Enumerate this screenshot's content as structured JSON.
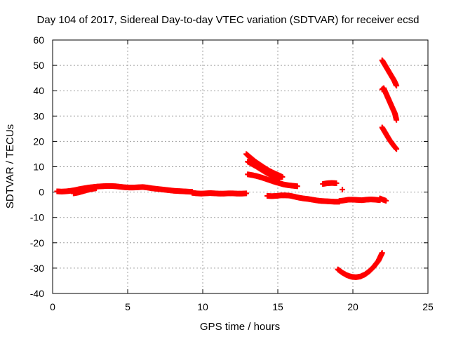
{
  "chart_data": {
    "type": "scatter",
    "title": "Day 104 of 2017, Sidereal Day-to-day VTEC variation (SDTVAR) for receiver ecsd",
    "xlabel": "GPS time / hours",
    "ylabel": "SDTVAR / TECUs",
    "xlim": [
      0,
      25
    ],
    "ylim": [
      -40,
      60
    ],
    "x_ticks": [
      "0",
      "5",
      "10",
      "15",
      "20",
      "25"
    ],
    "y_ticks": [
      "60",
      "50",
      "40",
      "30",
      "20",
      "10",
      "0",
      "-10",
      "-20",
      "-30",
      "-40"
    ],
    "x_tick_values": [
      0,
      5,
      10,
      15,
      20,
      25
    ],
    "y_tick_values": [
      60,
      50,
      40,
      30,
      20,
      10,
      0,
      -10,
      -20,
      -30,
      -40
    ],
    "grid": true,
    "marker": "plus",
    "series_color": "#ff0000",
    "series": [
      {
        "x": [
          0.3,
          0.6,
          0.9,
          1.2,
          1.5,
          1.8,
          2.1,
          2.4,
          2.7,
          3.0,
          3.3,
          3.6,
          3.9,
          4.2,
          4.5,
          4.8,
          5.1,
          5.4,
          5.7,
          6.0,
          6.3,
          6.6,
          6.9,
          7.2,
          7.5,
          7.8,
          8.1,
          8.4,
          8.7,
          9.0,
          9.3
        ],
        "y": [
          0.3,
          0.2,
          0.3,
          0.5,
          0.8,
          1.2,
          1.5,
          1.8,
          2.0,
          2.2,
          2.3,
          2.4,
          2.4,
          2.3,
          2.1,
          1.9,
          1.8,
          1.8,
          1.9,
          2.0,
          1.8,
          1.5,
          1.3,
          1.1,
          0.9,
          0.7,
          0.5,
          0.4,
          0.3,
          0.2,
          0.1
        ]
      },
      {
        "x": [
          1.4,
          1.7,
          2.0,
          2.3,
          2.6,
          2.9
        ],
        "y": [
          -0.5,
          -0.2,
          0.3,
          0.8,
          1.2,
          1.5
        ]
      },
      {
        "x": [
          9.3,
          9.6,
          9.9,
          10.2,
          10.5,
          10.8,
          11.1,
          11.4,
          11.7,
          12.0,
          12.3,
          12.6,
          12.9
        ],
        "y": [
          -0.3,
          -0.5,
          -0.6,
          -0.5,
          -0.4,
          -0.5,
          -0.6,
          -0.6,
          -0.5,
          -0.5,
          -0.6,
          -0.6,
          -0.5
        ]
      },
      {
        "x": [
          12.9,
          13.2,
          13.5,
          13.8,
          14.1,
          14.4,
          14.7,
          15.0,
          15.3
        ],
        "y": [
          15.0,
          13.5,
          12.0,
          10.8,
          9.6,
          8.5,
          7.6,
          6.8,
          6.0
        ]
      },
      {
        "x": [
          13.0,
          13.3,
          13.6,
          13.9,
          14.2,
          14.5,
          14.8,
          15.1
        ],
        "y": [
          12.0,
          11.0,
          10.0,
          8.9,
          7.8,
          6.8,
          5.9,
          5.1
        ]
      },
      {
        "x": [
          13.0,
          13.3,
          13.6,
          13.9,
          14.2,
          14.5,
          14.8,
          15.1,
          15.4,
          15.7,
          16.0,
          16.3
        ],
        "y": [
          7.0,
          6.7,
          6.3,
          5.8,
          5.2,
          4.6,
          4.0,
          3.5,
          3.0,
          2.7,
          2.5,
          2.3
        ]
      },
      {
        "x": [
          14.3,
          14.6,
          14.9,
          15.2,
          15.5,
          15.8,
          16.1,
          16.4,
          16.7,
          17.0,
          17.3,
          17.6,
          17.9,
          18.2,
          18.5,
          18.8,
          19.1
        ],
        "y": [
          -1.5,
          -1.6,
          -1.5,
          -1.3,
          -1.3,
          -1.4,
          -1.8,
          -2.2,
          -2.5,
          -2.7,
          -3.0,
          -3.3,
          -3.5,
          -3.6,
          -3.7,
          -3.8,
          -3.8
        ]
      },
      {
        "x": [
          18.0,
          18.3,
          18.6,
          18.9
        ],
        "y": [
          3.2,
          3.5,
          3.6,
          3.5
        ]
      },
      {
        "x": [
          19.3
        ],
        "y": [
          1.0
        ]
      },
      {
        "x": [
          19.1,
          19.4,
          19.7,
          20.0,
          20.3,
          20.6,
          20.9,
          21.2,
          21.5,
          21.8
        ],
        "y": [
          -3.5,
          -3.3,
          -3.0,
          -3.0,
          -3.1,
          -3.2,
          -3.0,
          -2.9,
          -3.0,
          -3.2
        ]
      },
      {
        "x": [
          21.8,
          22.0,
          22.2
        ],
        "y": [
          -2.5,
          -3.0,
          -3.4
        ]
      },
      {
        "x": [
          19.0,
          19.3,
          19.6,
          19.9,
          20.2,
          20.5,
          20.8,
          21.1,
          21.4,
          21.7,
          21.95
        ],
        "y": [
          -30.5,
          -31.8,
          -32.8,
          -33.4,
          -33.6,
          -33.3,
          -32.5,
          -31.2,
          -29.4,
          -27.1,
          -24.0
        ]
      },
      {
        "x": [
          21.95,
          22.15,
          22.35,
          22.55,
          22.75,
          22.9
        ],
        "y": [
          52.0,
          50.0,
          48.0,
          46.0,
          44.0,
          42.0
        ]
      },
      {
        "x": [
          21.95,
          22.05,
          22.2,
          22.35,
          22.5,
          22.65,
          22.8,
          22.9
        ],
        "y": [
          40.5,
          41.0,
          39.0,
          37.0,
          35.0,
          33.0,
          31.0,
          28.5
        ]
      },
      {
        "x": [
          21.95,
          22.2,
          22.45,
          22.7,
          22.9
        ],
        "y": [
          25.5,
          23.0,
          20.5,
          18.5,
          17.0
        ]
      }
    ]
  }
}
